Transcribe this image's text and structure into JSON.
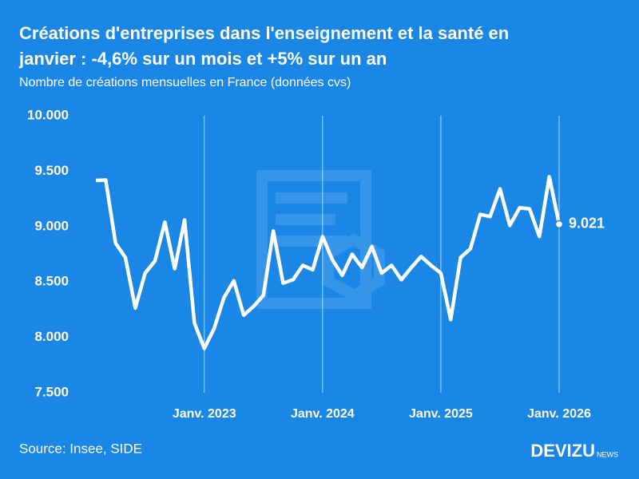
{
  "chart_data": {
    "type": "line",
    "title": "Créations d'entreprises dans l'enseignement et la santé en",
    "title_line2": "janvier : -4,6% sur un mois et +5% sur un an",
    "subtitle": "Nombre de créations mensuelles en France (données cvs)",
    "source": "Source: Insee, SIDE",
    "logo": "DEVIZU",
    "logo_suffix": "NEWS",
    "background": "#1a86e6",
    "color": "#ffffff",
    "categories": [
      null,
      null,
      null,
      null,
      null,
      null,
      null,
      null,
      null,
      null,
      null,
      "Janv. 2023",
      null,
      null,
      null,
      null,
      null,
      null,
      null,
      null,
      null,
      null,
      null,
      "Janv. 2024",
      null,
      null,
      null,
      null,
      null,
      null,
      null,
      null,
      null,
      null,
      null,
      "Janv. 2025",
      null,
      null,
      null,
      null,
      null,
      null,
      null,
      null,
      null,
      null,
      null,
      "Janv. 2026"
    ],
    "values": [
      9416,
      9420,
      8850,
      8720,
      8265,
      8580,
      8690,
      9040,
      8620,
      9060,
      8130,
      7900,
      8080,
      8360,
      8510,
      8200,
      8280,
      8380,
      8960,
      8490,
      8520,
      8650,
      8610,
      8910,
      8700,
      8560,
      8750,
      8630,
      8820,
      8580,
      8650,
      8520,
      8630,
      8730,
      8650,
      8580,
      8160,
      8720,
      8800,
      9110,
      9090,
      9340,
      9010,
      9170,
      9160,
      8910,
      9450,
      9021
    ],
    "value_labels": [
      null,
      null,
      null,
      null,
      null,
      null,
      null,
      null,
      null,
      null,
      null,
      null,
      null,
      null,
      null,
      null,
      null,
      null,
      null,
      null,
      null,
      null,
      null,
      null,
      null,
      null,
      null,
      null,
      null,
      null,
      null,
      null,
      null,
      null,
      null,
      null,
      null,
      null,
      null,
      null,
      null,
      null,
      null,
      null,
      null,
      null,
      null,
      "9.021"
    ],
    "ylim": [
      7500,
      10000
    ],
    "yticks": [
      {
        "value": 7500,
        "label": "7.500"
      },
      {
        "value": 8000,
        "label": "8.000"
      },
      {
        "value": 8500,
        "label": "8.500"
      },
      {
        "value": 9000,
        "label": "9.000"
      },
      {
        "value": 9500,
        "label": "9.500"
      },
      {
        "value": 10000,
        "label": "10.000"
      }
    ],
    "grid": true
  }
}
